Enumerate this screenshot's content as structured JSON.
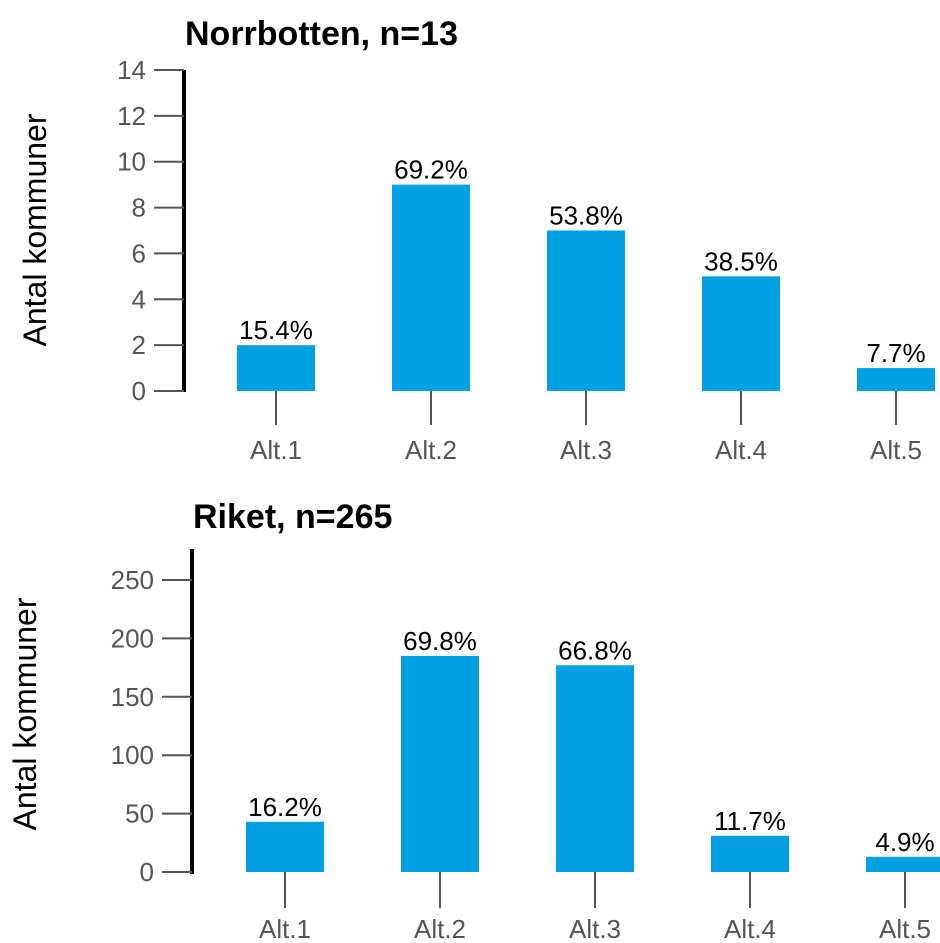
{
  "chart_data": [
    {
      "type": "bar",
      "title": "Norrbotten, n=13",
      "ylabel": "Antal kommuner",
      "ylim": [
        0,
        14
      ],
      "yticks": [
        0,
        2,
        4,
        6,
        8,
        10,
        12,
        14
      ],
      "categories": [
        "Alt.1",
        "Alt.2",
        "Alt.3",
        "Alt.4",
        "Alt.5"
      ],
      "values": [
        2,
        9,
        7,
        5,
        1
      ],
      "labels": [
        "15.4%",
        "69.2%",
        "53.8%",
        "38.5%",
        "7.7%"
      ],
      "color": "#00a0e3"
    },
    {
      "type": "bar",
      "title": "Riket, n=265",
      "ylabel": "Antal kommuner",
      "ylim": [
        0,
        265
      ],
      "yticks": [
        0,
        50,
        100,
        150,
        200,
        250
      ],
      "categories": [
        "Alt.1",
        "Alt.2",
        "Alt.3",
        "Alt.4",
        "Alt.5"
      ],
      "values": [
        43,
        185,
        177,
        31,
        13
      ],
      "labels": [
        "16.2%",
        "69.8%",
        "66.8%",
        "11.7%",
        "4.9%"
      ],
      "color": "#00a0e3"
    }
  ]
}
